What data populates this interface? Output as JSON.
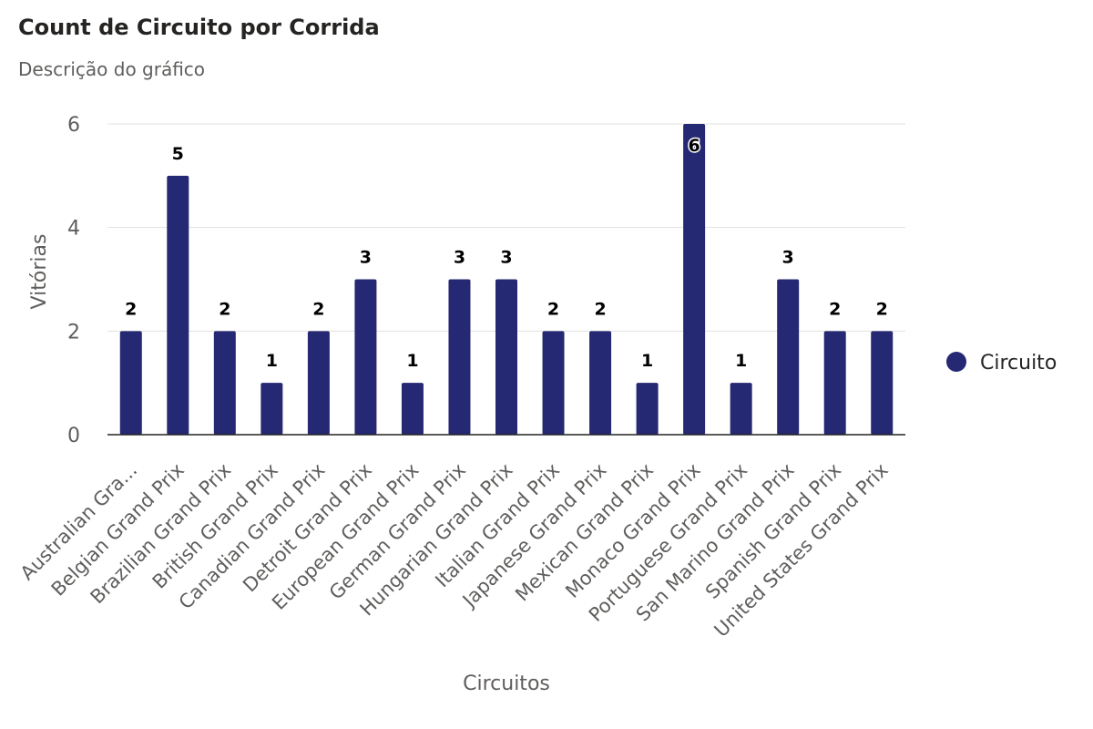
{
  "chart_data": {
    "type": "bar",
    "title": "Count de Circuito por Corrida",
    "subtitle": "Descrição do gráfico",
    "xlabel": "Circuitos",
    "ylabel": "Vitórias",
    "categories": [
      "Australian Gra...",
      "Belgian Grand Prix",
      "Brazilian Grand Prix",
      "British Grand Prix",
      "Canadian Grand Prix",
      "Detroit Grand Prix",
      "European Grand Prix",
      "German Grand Prix",
      "Hungarian Grand Prix",
      "Italian Grand Prix",
      "Japanese Grand Prix",
      "Mexican Grand Prix",
      "Monaco Grand Prix",
      "Portuguese Grand Prix",
      "San Marino Grand Prix",
      "Spanish Grand Prix",
      "United States Grand Prix"
    ],
    "series": [
      {
        "name": "Circuito",
        "color": "#252872",
        "values": [
          2,
          5,
          2,
          1,
          2,
          3,
          1,
          3,
          3,
          2,
          2,
          1,
          6,
          1,
          3,
          2,
          2
        ]
      }
    ],
    "ylim": [
      0,
      6
    ],
    "yticks": [
      0,
      2,
      4,
      6
    ],
    "grid": true,
    "legend_position": "right",
    "data_labels": true
  }
}
